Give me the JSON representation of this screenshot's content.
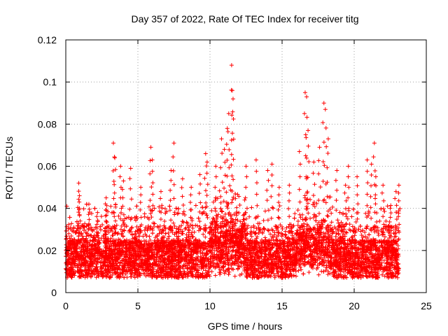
{
  "chart_data": {
    "type": "scatter",
    "title": "Day 357 of 2022, Rate Of TEC Index for receiver titg",
    "xlabel": "GPS time / hours",
    "ylabel": "ROTI / TECUs",
    "xlim": [
      0,
      25
    ],
    "ylim": [
      0,
      0.12
    ],
    "xticks": [
      0,
      5,
      10,
      15,
      20,
      25
    ],
    "xtick_labels": [
      "0",
      "5",
      "10",
      "15",
      "20",
      "25"
    ],
    "yticks": [
      0,
      0.02,
      0.04,
      0.06,
      0.08,
      0.1,
      0.12
    ],
    "ytick_labels": [
      "0",
      "0.02",
      "0.04",
      "0.06",
      "0.08",
      "0.1",
      "0.12"
    ],
    "grid": true,
    "marker": "+",
    "color": "#ff0000",
    "series": [
      {
        "x": [
          0.2,
          0.9,
          0.95,
          1.6,
          2.2,
          2.8,
          3.3,
          3.4,
          3.8,
          4.0,
          4.5,
          5.2,
          5.9,
          6.0,
          6.6,
          7.3,
          7.5,
          8.1,
          8.7,
          9.3,
          9.7,
          9.8,
          10.4,
          10.8,
          11.0,
          11.2,
          11.3,
          11.5,
          11.55,
          11.6,
          12.5,
          13.2,
          14.0,
          14.3,
          14.8,
          15.5,
          16.2,
          16.6,
          16.7,
          16.8,
          17.2,
          17.6,
          17.9,
          18.0,
          18.2,
          18.8,
          19.4,
          19.6,
          20.2,
          20.9,
          21.2,
          21.4,
          21.5,
          22.0,
          22.5,
          22.9,
          23.1
        ],
        "y": [
          0.021,
          0.052,
          0.046,
          0.042,
          0.038,
          0.045,
          0.071,
          0.064,
          0.06,
          0.053,
          0.059,
          0.05,
          0.069,
          0.063,
          0.048,
          0.058,
          0.071,
          0.054,
          0.05,
          0.056,
          0.066,
          0.062,
          0.06,
          0.073,
          0.068,
          0.078,
          0.085,
          0.108,
          0.096,
          0.092,
          0.06,
          0.063,
          0.058,
          0.061,
          0.05,
          0.051,
          0.067,
          0.095,
          0.093,
          0.077,
          0.062,
          0.069,
          0.09,
          0.087,
          0.073,
          0.058,
          0.051,
          0.06,
          0.055,
          0.063,
          0.061,
          0.071,
          0.055,
          0.051,
          0.04,
          0.048,
          0.051
        ]
      }
    ]
  }
}
